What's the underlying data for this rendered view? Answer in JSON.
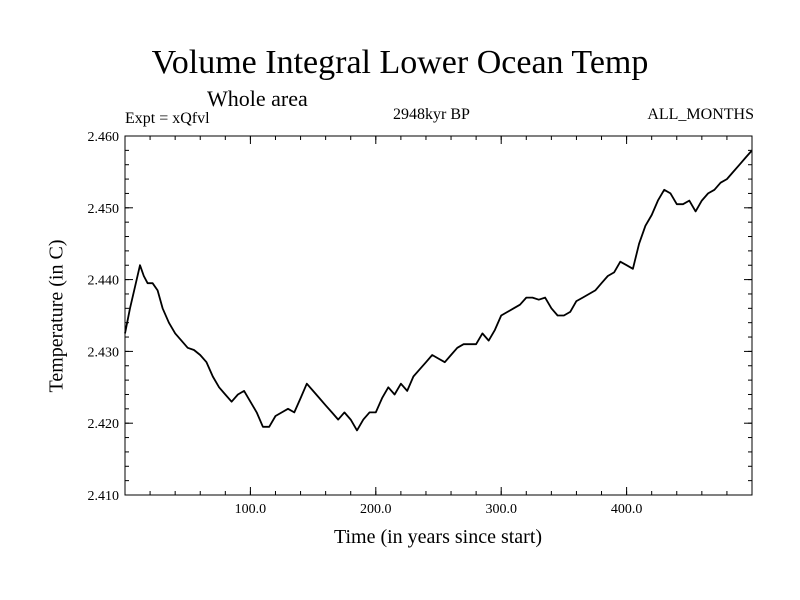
{
  "chart_data": {
    "type": "line",
    "title": "Volume Integral Lower Ocean Temp",
    "subtitle": "Whole area",
    "experiment": "Expt = xQfvl",
    "period": "2948kyr BP",
    "season": "ALL_MONTHS",
    "xlabel": "Time (in years since start)",
    "ylabel": "Temperature (in C)",
    "xlim": [
      0,
      500
    ],
    "ylim": [
      2.41,
      2.46
    ],
    "xticks": [
      100,
      200,
      300,
      400
    ],
    "xtick_labels": [
      "100.0",
      "200.0",
      "300.0",
      "400.0"
    ],
    "yticks": [
      2.41,
      2.42,
      2.43,
      2.44,
      2.45,
      2.46
    ],
    "ytick_labels": [
      "2.410",
      "2.420",
      "2.430",
      "2.440",
      "2.450",
      "2.460"
    ],
    "grid": false,
    "series": [
      {
        "name": "Temperature",
        "color": "#000000",
        "x": [
          0,
          4,
          8,
          12,
          15,
          18,
          22,
          26,
          30,
          35,
          40,
          45,
          50,
          55,
          60,
          65,
          70,
          75,
          80,
          85,
          90,
          95,
          100,
          105,
          110,
          115,
          120,
          125,
          130,
          135,
          140,
          145,
          150,
          155,
          160,
          165,
          170,
          175,
          180,
          185,
          190,
          195,
          200,
          205,
          210,
          215,
          220,
          225,
          230,
          235,
          240,
          245,
          250,
          255,
          260,
          265,
          270,
          275,
          280,
          285,
          290,
          295,
          300,
          305,
          310,
          315,
          320,
          325,
          330,
          335,
          340,
          345,
          350,
          355,
          360,
          365,
          370,
          375,
          380,
          385,
          390,
          395,
          400,
          405,
          410,
          415,
          420,
          425,
          430,
          435,
          440,
          445,
          450,
          455,
          460,
          465,
          470,
          475,
          480,
          485,
          490,
          495,
          500
        ],
        "y": [
          2.4325,
          2.436,
          2.439,
          2.442,
          2.4405,
          2.4395,
          2.4395,
          2.4385,
          2.436,
          2.434,
          2.4325,
          2.4315,
          2.4305,
          2.4302,
          2.4295,
          2.4285,
          2.4265,
          2.425,
          2.424,
          2.423,
          2.424,
          2.4245,
          2.423,
          2.4215,
          2.4195,
          2.4195,
          2.421,
          2.4215,
          2.422,
          2.4215,
          2.4235,
          2.4255,
          2.4245,
          2.4235,
          2.4225,
          2.4215,
          2.4205,
          2.4215,
          2.4205,
          2.419,
          2.4205,
          2.4215,
          2.4215,
          2.4235,
          2.425,
          2.424,
          2.4255,
          2.4245,
          2.4265,
          2.4275,
          2.4285,
          2.4295,
          2.429,
          2.4285,
          2.4295,
          2.4305,
          2.431,
          2.431,
          2.431,
          2.4325,
          2.4315,
          2.433,
          2.435,
          2.4355,
          2.436,
          2.4365,
          2.4375,
          2.4375,
          2.4372,
          2.4375,
          2.436,
          2.435,
          2.435,
          2.4355,
          2.437,
          2.4375,
          2.438,
          2.4385,
          2.4395,
          2.4405,
          2.441,
          2.4425,
          2.442,
          2.4415,
          2.445,
          2.4475,
          2.449,
          2.451,
          2.4525,
          2.452,
          2.4505,
          2.4505,
          2.451,
          2.4495,
          2.451,
          2.452,
          2.4525,
          2.4535,
          2.454,
          2.455,
          2.456,
          2.457,
          2.458
        ]
      }
    ]
  }
}
